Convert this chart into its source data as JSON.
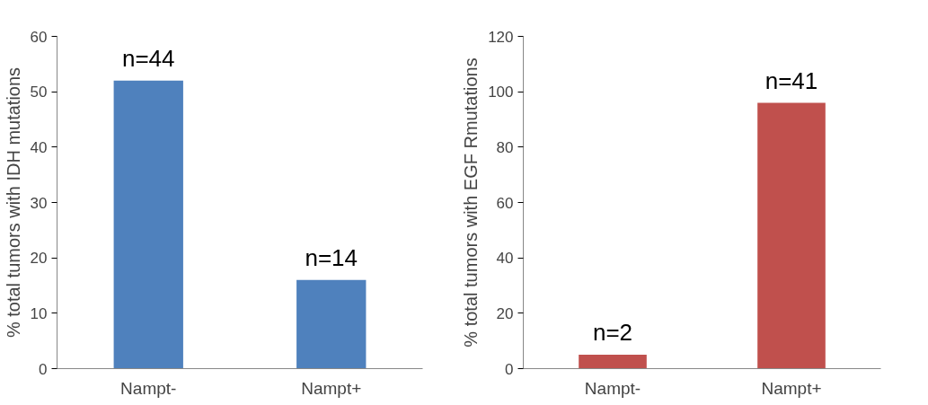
{
  "chart_data": [
    {
      "type": "bar",
      "ylabel": "% total tumors with IDH mutations",
      "categories": [
        "Nampt-",
        "Nampt+"
      ],
      "values": [
        52,
        16
      ],
      "color": "#4f81bd",
      "ylim": [
        0,
        60
      ],
      "yticks": [
        0,
        10,
        20,
        30,
        40,
        50,
        60
      ],
      "grid": false,
      "annotations": [
        {
          "text": "n=44",
          "x": "Nampt-",
          "y": 52
        },
        {
          "text": "n=14",
          "x": "Nampt+",
          "y": 16
        }
      ]
    },
    {
      "type": "bar",
      "ylabel": "% total tumors with EGF Rmutations",
      "categories": [
        "Nampt-",
        "Nampt+"
      ],
      "values": [
        5,
        96
      ],
      "color": "#c0504d",
      "ylim": [
        0,
        120
      ],
      "yticks": [
        0,
        20,
        40,
        60,
        80,
        100,
        120
      ],
      "grid": false,
      "annotations": [
        {
          "text": "n=2",
          "x": "Nampt-",
          "y": 5
        },
        {
          "text": "n=41",
          "x": "Nampt+",
          "y": 96
        }
      ]
    }
  ]
}
